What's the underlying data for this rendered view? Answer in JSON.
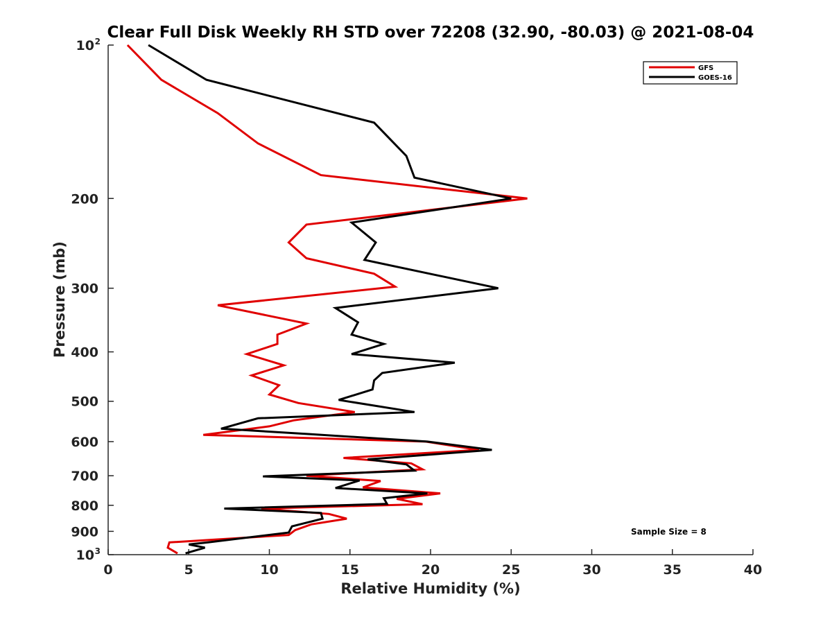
{
  "chart_data": {
    "type": "line",
    "title": "Clear Full Disk Weekly RH STD over 72208 (32.90, -80.03) @ 2021-08-04",
    "xlabel": "Relative Humidity (%)",
    "ylabel": "Pressure (mb)",
    "xlim": [
      0,
      40
    ],
    "ylim": [
      100,
      1000
    ],
    "y_scale": "log",
    "y_reversed": true,
    "grid": false,
    "x_ticks": [
      {
        "value": 0,
        "label": "0"
      },
      {
        "value": 5,
        "label": "5"
      },
      {
        "value": 10,
        "label": "10"
      },
      {
        "value": 15,
        "label": "15"
      },
      {
        "value": 20,
        "label": "20"
      },
      {
        "value": 25,
        "label": "25"
      },
      {
        "value": 30,
        "label": "30"
      },
      {
        "value": 35,
        "label": "35"
      },
      {
        "value": 40,
        "label": "40"
      }
    ],
    "y_ticks": [
      {
        "value": 100,
        "label": "10",
        "exp": "2"
      },
      {
        "value": 200,
        "label": "200"
      },
      {
        "value": 300,
        "label": "300"
      },
      {
        "value": 400,
        "label": "400"
      },
      {
        "value": 500,
        "label": "500"
      },
      {
        "value": 600,
        "label": "600"
      },
      {
        "value": 700,
        "label": "700"
      },
      {
        "value": 800,
        "label": "800"
      },
      {
        "value": 900,
        "label": "900"
      },
      {
        "value": 1000,
        "label": "10",
        "exp": "3"
      }
    ],
    "legend_position": "top-right",
    "annotation": "Sample Size = 8",
    "series": [
      {
        "name": "GFS",
        "color": "#e00000",
        "points": [
          [
            1.2,
            100
          ],
          [
            3.3,
            117
          ],
          [
            6.8,
            136
          ],
          [
            9.3,
            156
          ],
          [
            13.2,
            180
          ],
          [
            26,
            200
          ],
          [
            12.3,
            225
          ],
          [
            11.2,
            244
          ],
          [
            12.3,
            262
          ],
          [
            16.5,
            281
          ],
          [
            17.8,
            298
          ],
          [
            6.8,
            324
          ],
          [
            12.3,
            352
          ],
          [
            10.5,
            370
          ],
          [
            10.5,
            386
          ],
          [
            8.6,
            404
          ],
          [
            10.9,
            425
          ],
          [
            8.9,
            445
          ],
          [
            10.6,
            465
          ],
          [
            10.0,
            485
          ],
          [
            11.8,
            504
          ],
          [
            15.3,
            525
          ],
          [
            11.5,
            545
          ],
          [
            10.0,
            560
          ],
          [
            5.9,
            582
          ],
          [
            19.7,
            600
          ],
          [
            23.0,
            623
          ],
          [
            14.6,
            646
          ],
          [
            18.8,
            662
          ],
          [
            19.5,
            680
          ],
          [
            12.3,
            700
          ],
          [
            16.9,
            717
          ],
          [
            15.8,
            738
          ],
          [
            20.6,
            758
          ],
          [
            17.9,
            777
          ],
          [
            19.5,
            796
          ],
          [
            9.5,
            812
          ],
          [
            13.7,
            832
          ],
          [
            14.8,
            850
          ],
          [
            12.6,
            872
          ],
          [
            11.6,
            895
          ],
          [
            11.2,
            915
          ],
          [
            3.8,
            946
          ],
          [
            3.7,
            969
          ],
          [
            4.3,
            994
          ]
        ]
      },
      {
        "name": "GOES-16",
        "color": "#000000",
        "points": [
          [
            2.5,
            100
          ],
          [
            6.1,
            117
          ],
          [
            16.5,
            142
          ],
          [
            18.5,
            165
          ],
          [
            19.0,
            182
          ],
          [
            25,
            200
          ],
          [
            15.1,
            223
          ],
          [
            16.6,
            244
          ],
          [
            15.9,
            264
          ],
          [
            24.2,
            300
          ],
          [
            14.1,
            328
          ],
          [
            15.5,
            350
          ],
          [
            15.1,
            370
          ],
          [
            17.1,
            386
          ],
          [
            15.1,
            404
          ],
          [
            21.5,
            420
          ],
          [
            17.0,
            440
          ],
          [
            16.5,
            455
          ],
          [
            16.4,
            474
          ],
          [
            14.3,
            497
          ],
          [
            19.0,
            525
          ],
          [
            9.3,
            540
          ],
          [
            7.0,
            566
          ],
          [
            12.5,
            580
          ],
          [
            19.8,
            600
          ],
          [
            23.8,
            623
          ],
          [
            16.1,
            650
          ],
          [
            18.5,
            665
          ],
          [
            19.0,
            684
          ],
          [
            9.6,
            702
          ],
          [
            15.6,
            715
          ],
          [
            14.1,
            740
          ],
          [
            19.8,
            758
          ],
          [
            17.1,
            775
          ],
          [
            17.3,
            795
          ],
          [
            7.2,
            812
          ],
          [
            13.2,
            828
          ],
          [
            13.3,
            850
          ],
          [
            11.4,
            880
          ],
          [
            11.2,
            905
          ],
          [
            6.2,
            946
          ],
          [
            5.0,
            955
          ],
          [
            6.0,
            969
          ],
          [
            4.8,
            994
          ]
        ]
      }
    ]
  }
}
